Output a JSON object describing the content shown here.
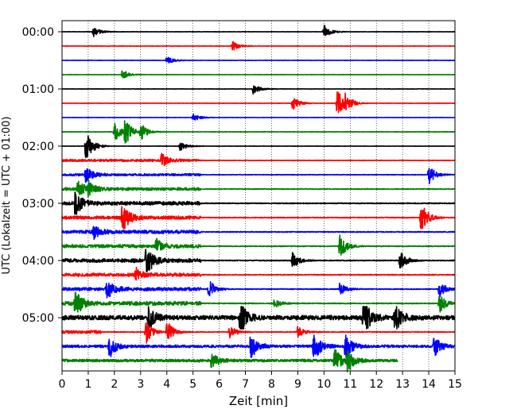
{
  "chart_data": {
    "type": "line",
    "title": "",
    "xlabel": "Zeit  [min]",
    "ylabel": "UTC (Lokalzeit = UTC + 01:00)",
    "xlim": [
      0,
      15
    ],
    "x_ticks": [
      "0",
      "1",
      "2",
      "3",
      "4",
      "5",
      "6",
      "7",
      "8",
      "9",
      "10",
      "11",
      "12",
      "13",
      "14",
      "15"
    ],
    "y_ticks": [
      "00:00",
      "01:00",
      "02:00",
      "03:00",
      "04:00",
      "05:00"
    ],
    "grid": "vertical dotted at each minute",
    "rows_per_hour": 4,
    "trace_colors": [
      "#000000",
      "#ff0000",
      "#0000ff",
      "#008000"
    ],
    "last_trace_end_min": 12.8,
    "traces": [
      {
        "start": "00:00",
        "color": "#000000",
        "amp": 0.18,
        "busy_until": 0,
        "events": [
          [
            1.2,
            0.3
          ],
          [
            10.0,
            0.4
          ]
        ]
      },
      {
        "start": "00:15",
        "color": "#ff0000",
        "amp": 0.22,
        "busy_until": 0,
        "events": [
          [
            6.5,
            0.3
          ]
        ]
      },
      {
        "start": "00:30",
        "color": "#0000ff",
        "amp": 0.2,
        "busy_until": 0,
        "events": [
          [
            4.0,
            0.25
          ]
        ]
      },
      {
        "start": "00:45",
        "color": "#008000",
        "amp": 0.18,
        "busy_until": 0,
        "events": [
          [
            2.3,
            0.3
          ]
        ]
      },
      {
        "start": "01:00",
        "color": "#000000",
        "amp": 0.2,
        "busy_until": 0,
        "events": [
          [
            7.3,
            0.3
          ]
        ]
      },
      {
        "start": "01:15",
        "color": "#ff0000",
        "amp": 0.18,
        "busy_until": 0,
        "events": [
          [
            8.8,
            0.4
          ],
          [
            10.5,
            0.9
          ],
          [
            10.8,
            0.5
          ]
        ]
      },
      {
        "start": "01:30",
        "color": "#0000ff",
        "amp": 0.16,
        "busy_until": 0,
        "events": [
          [
            5.0,
            0.25
          ]
        ]
      },
      {
        "start": "01:45",
        "color": "#008000",
        "amp": 0.25,
        "busy_until": 0,
        "events": [
          [
            2.0,
            0.6
          ],
          [
            2.4,
            0.8
          ],
          [
            3.0,
            0.5
          ]
        ]
      },
      {
        "start": "02:00",
        "color": "#000000",
        "amp": 0.18,
        "busy_until": 0,
        "events": [
          [
            0.9,
            1.1
          ],
          [
            4.5,
            0.3
          ]
        ]
      },
      {
        "start": "02:15",
        "color": "#ff0000",
        "amp": 0.3,
        "busy_until": 5.3,
        "events": [
          [
            3.8,
            0.4
          ]
        ]
      },
      {
        "start": "02:30",
        "color": "#0000ff",
        "amp": 0.3,
        "busy_until": 5.3,
        "events": [
          [
            0.9,
            0.5
          ],
          [
            14.0,
            0.6
          ]
        ]
      },
      {
        "start": "02:45",
        "color": "#008000",
        "amp": 0.4,
        "busy_until": 5.3,
        "events": [
          [
            0.6,
            0.5
          ],
          [
            1.0,
            0.4
          ]
        ]
      },
      {
        "start": "03:00",
        "color": "#000000",
        "amp": 0.5,
        "busy_until": 5.3,
        "events": [
          [
            0.5,
            0.8
          ]
        ]
      },
      {
        "start": "03:15",
        "color": "#ff0000",
        "amp": 0.45,
        "busy_until": 5.3,
        "events": [
          [
            2.3,
            0.9
          ],
          [
            13.7,
            1.0
          ]
        ]
      },
      {
        "start": "03:30",
        "color": "#0000ff",
        "amp": 0.45,
        "busy_until": 5.3,
        "events": [
          [
            1.2,
            0.4
          ]
        ]
      },
      {
        "start": "03:45",
        "color": "#008000",
        "amp": 0.45,
        "busy_until": 5.3,
        "events": [
          [
            3.6,
            0.5
          ],
          [
            10.6,
            0.8
          ]
        ]
      },
      {
        "start": "04:00",
        "color": "#000000",
        "amp": 0.5,
        "busy_until": 5.3,
        "events": [
          [
            3.2,
            1.0
          ],
          [
            8.8,
            0.5
          ],
          [
            12.9,
            0.6
          ]
        ]
      },
      {
        "start": "04:15",
        "color": "#ff0000",
        "amp": 0.45,
        "busy_until": 5.3,
        "events": [
          [
            2.8,
            0.4
          ]
        ]
      },
      {
        "start": "04:30",
        "color": "#0000ff",
        "amp": 0.45,
        "busy_until": 5.3,
        "events": [
          [
            1.7,
            0.6
          ],
          [
            5.6,
            0.6
          ],
          [
            10.6,
            0.4
          ],
          [
            14.4,
            0.5
          ]
        ]
      },
      {
        "start": "04:45",
        "color": "#008000",
        "amp": 0.5,
        "busy_until": 5.3,
        "events": [
          [
            0.5,
            0.9
          ],
          [
            8.1,
            0.3
          ],
          [
            14.4,
            0.6
          ]
        ]
      },
      {
        "start": "05:00",
        "color": "#000000",
        "amp": 0.6,
        "busy_until": 15,
        "events": [
          [
            3.3,
            0.7
          ],
          [
            6.8,
            1.1
          ],
          [
            11.5,
            1.2
          ],
          [
            12.7,
            0.9
          ]
        ]
      },
      {
        "start": "05:15",
        "color": "#ff0000",
        "amp": 0.4,
        "busy_until": 1.5,
        "events": [
          [
            3.2,
            0.8
          ],
          [
            4.0,
            0.7
          ],
          [
            6.4,
            0.4
          ],
          [
            9.0,
            0.4
          ]
        ]
      },
      {
        "start": "05:30",
        "color": "#0000ff",
        "amp": 0.35,
        "busy_until": 15,
        "events": [
          [
            1.8,
            0.7
          ],
          [
            7.2,
            0.9
          ],
          [
            9.6,
            1.0
          ],
          [
            10.8,
            0.8
          ],
          [
            14.2,
            0.6
          ]
        ]
      },
      {
        "start": "05:45",
        "color": "#008000",
        "amp": 0.35,
        "busy_until": 12.8,
        "events": [
          [
            5.7,
            0.6
          ],
          [
            10.4,
            0.8
          ],
          [
            10.9,
            0.7
          ]
        ]
      }
    ]
  }
}
